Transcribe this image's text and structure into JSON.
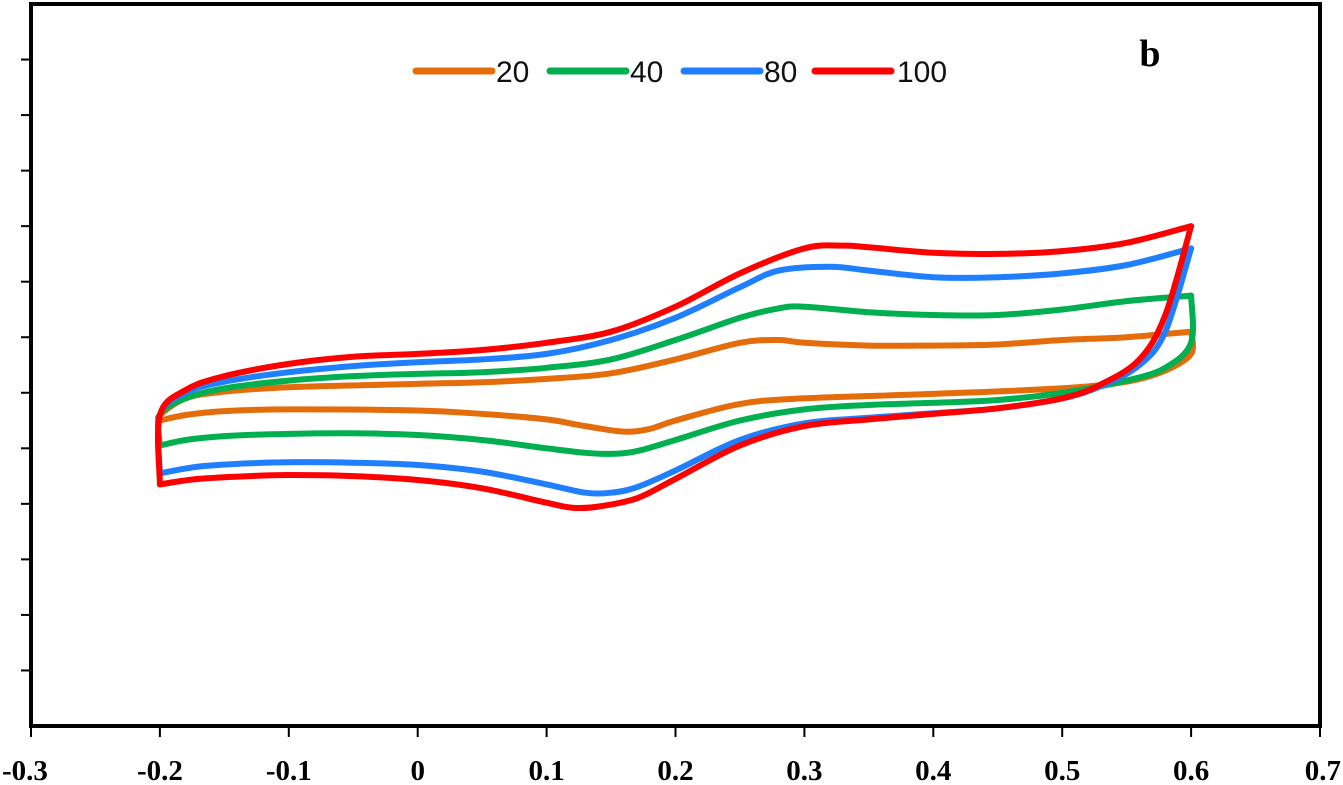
{
  "chart_data": {
    "type": "line",
    "title": "",
    "panel_label": "b",
    "xlabel": "",
    "ylabel": "",
    "xlim": [
      -0.3,
      0.7
    ],
    "ylim": [
      -8,
      5
    ],
    "x_ticks": [
      "-0.3",
      "-0.2",
      "-0.1",
      "0",
      "0.1",
      "0.2",
      "0.3",
      "0.4",
      "0.5",
      "0.6",
      "0.7"
    ],
    "x_tick_values": [
      -0.3,
      -0.2,
      -0.1,
      0,
      0.1,
      0.2,
      0.3,
      0.4,
      0.5,
      0.6,
      0.7
    ],
    "y_tick_values": [
      -7,
      -6,
      -5,
      -4,
      -3,
      -2,
      -1,
      0,
      1,
      2,
      3,
      4
    ],
    "y_ticks_labeled": false,
    "grid": false,
    "legend_position": "top-center",
    "series": [
      {
        "name": "20",
        "color": "#E46C0A",
        "forward": [
          [
            -0.2,
            -2.5
          ],
          [
            -0.18,
            -2.4
          ],
          [
            -0.15,
            -2.33
          ],
          [
            -0.1,
            -2.3
          ],
          [
            0.0,
            -2.32
          ],
          [
            0.05,
            -2.38
          ],
          [
            0.1,
            -2.48
          ],
          [
            0.13,
            -2.6
          ],
          [
            0.16,
            -2.7
          ],
          [
            0.18,
            -2.65
          ],
          [
            0.2,
            -2.5
          ],
          [
            0.25,
            -2.2
          ],
          [
            0.3,
            -2.1
          ],
          [
            0.4,
            -2.02
          ],
          [
            0.5,
            -1.92
          ],
          [
            0.55,
            -1.8
          ],
          [
            0.58,
            -1.6
          ],
          [
            0.6,
            -1.3
          ],
          [
            0.6,
            -0.9
          ]
        ],
        "reverse": [
          [
            0.6,
            -0.9
          ],
          [
            0.55,
            -1.0
          ],
          [
            0.5,
            -1.05
          ],
          [
            0.45,
            -1.13
          ],
          [
            0.4,
            -1.15
          ],
          [
            0.35,
            -1.15
          ],
          [
            0.3,
            -1.1
          ],
          [
            0.28,
            -1.05
          ],
          [
            0.25,
            -1.1
          ],
          [
            0.2,
            -1.4
          ],
          [
            0.15,
            -1.65
          ],
          [
            0.1,
            -1.75
          ],
          [
            0.05,
            -1.81
          ],
          [
            0.0,
            -1.84
          ],
          [
            -0.1,
            -1.9
          ],
          [
            -0.15,
            -1.98
          ],
          [
            -0.18,
            -2.1
          ],
          [
            -0.2,
            -2.4
          ],
          [
            -0.2,
            -2.5
          ]
        ]
      },
      {
        "name": "40",
        "color": "#00B050",
        "forward": [
          [
            -0.2,
            -2.95
          ],
          [
            -0.18,
            -2.85
          ],
          [
            -0.15,
            -2.78
          ],
          [
            -0.1,
            -2.74
          ],
          [
            -0.05,
            -2.73
          ],
          [
            0.0,
            -2.76
          ],
          [
            0.05,
            -2.85
          ],
          [
            0.1,
            -3.0
          ],
          [
            0.13,
            -3.08
          ],
          [
            0.15,
            -3.1
          ],
          [
            0.17,
            -3.05
          ],
          [
            0.2,
            -2.85
          ],
          [
            0.25,
            -2.5
          ],
          [
            0.3,
            -2.3
          ],
          [
            0.35,
            -2.22
          ],
          [
            0.4,
            -2.18
          ],
          [
            0.45,
            -2.13
          ],
          [
            0.5,
            -2.0
          ],
          [
            0.55,
            -1.78
          ],
          [
            0.58,
            -1.55
          ],
          [
            0.6,
            -1.1
          ],
          [
            0.6,
            -0.25
          ]
        ],
        "reverse": [
          [
            0.6,
            -0.25
          ],
          [
            0.55,
            -0.35
          ],
          [
            0.5,
            -0.5
          ],
          [
            0.45,
            -0.6
          ],
          [
            0.4,
            -0.6
          ],
          [
            0.35,
            -0.55
          ],
          [
            0.3,
            -0.45
          ],
          [
            0.28,
            -0.48
          ],
          [
            0.25,
            -0.65
          ],
          [
            0.2,
            -1.05
          ],
          [
            0.15,
            -1.4
          ],
          [
            0.1,
            -1.55
          ],
          [
            0.05,
            -1.63
          ],
          [
            0.0,
            -1.66
          ],
          [
            -0.05,
            -1.7
          ],
          [
            -0.1,
            -1.78
          ],
          [
            -0.15,
            -1.92
          ],
          [
            -0.18,
            -2.1
          ],
          [
            -0.2,
            -2.4
          ],
          [
            -0.2,
            -2.95
          ]
        ]
      },
      {
        "name": "80",
        "color": "#1F7FFF",
        "forward": [
          [
            -0.2,
            -3.45
          ],
          [
            -0.17,
            -3.33
          ],
          [
            -0.13,
            -3.27
          ],
          [
            -0.1,
            -3.25
          ],
          [
            -0.05,
            -3.26
          ],
          [
            0.0,
            -3.3
          ],
          [
            0.05,
            -3.42
          ],
          [
            0.1,
            -3.65
          ],
          [
            0.13,
            -3.8
          ],
          [
            0.15,
            -3.8
          ],
          [
            0.17,
            -3.7
          ],
          [
            0.2,
            -3.4
          ],
          [
            0.25,
            -2.85
          ],
          [
            0.3,
            -2.55
          ],
          [
            0.35,
            -2.45
          ],
          [
            0.4,
            -2.37
          ],
          [
            0.45,
            -2.28
          ],
          [
            0.5,
            -2.1
          ],
          [
            0.53,
            -1.88
          ],
          [
            0.56,
            -1.5
          ],
          [
            0.58,
            -0.9
          ],
          [
            0.6,
            0.6
          ]
        ],
        "reverse": [
          [
            0.6,
            0.6
          ],
          [
            0.55,
            0.3
          ],
          [
            0.5,
            0.15
          ],
          [
            0.45,
            0.08
          ],
          [
            0.4,
            0.08
          ],
          [
            0.35,
            0.2
          ],
          [
            0.32,
            0.27
          ],
          [
            0.28,
            0.2
          ],
          [
            0.25,
            -0.1
          ],
          [
            0.2,
            -0.65
          ],
          [
            0.15,
            -1.05
          ],
          [
            0.1,
            -1.3
          ],
          [
            0.05,
            -1.4
          ],
          [
            0.0,
            -1.45
          ],
          [
            -0.05,
            -1.52
          ],
          [
            -0.1,
            -1.63
          ],
          [
            -0.15,
            -1.8
          ],
          [
            -0.18,
            -2.0
          ],
          [
            -0.2,
            -2.4
          ],
          [
            -0.2,
            -3.45
          ]
        ]
      },
      {
        "name": "100",
        "color": "#FF0000",
        "forward": [
          [
            -0.2,
            -3.65
          ],
          [
            -0.17,
            -3.55
          ],
          [
            -0.13,
            -3.5
          ],
          [
            -0.1,
            -3.48
          ],
          [
            -0.05,
            -3.5
          ],
          [
            0.0,
            -3.57
          ],
          [
            0.05,
            -3.72
          ],
          [
            0.1,
            -3.98
          ],
          [
            0.12,
            -4.07
          ],
          [
            0.14,
            -4.05
          ],
          [
            0.17,
            -3.9
          ],
          [
            0.2,
            -3.55
          ],
          [
            0.25,
            -2.95
          ],
          [
            0.3,
            -2.6
          ],
          [
            0.35,
            -2.48
          ],
          [
            0.4,
            -2.38
          ],
          [
            0.45,
            -2.28
          ],
          [
            0.5,
            -2.1
          ],
          [
            0.53,
            -1.85
          ],
          [
            0.56,
            -1.4
          ],
          [
            0.58,
            -0.6
          ],
          [
            0.6,
            1.0
          ]
        ],
        "reverse": [
          [
            0.6,
            1.0
          ],
          [
            0.55,
            0.7
          ],
          [
            0.5,
            0.55
          ],
          [
            0.45,
            0.5
          ],
          [
            0.4,
            0.52
          ],
          [
            0.35,
            0.62
          ],
          [
            0.33,
            0.65
          ],
          [
            0.3,
            0.6
          ],
          [
            0.25,
            0.15
          ],
          [
            0.2,
            -0.45
          ],
          [
            0.15,
            -0.9
          ],
          [
            0.1,
            -1.1
          ],
          [
            0.05,
            -1.23
          ],
          [
            0.0,
            -1.3
          ],
          [
            -0.05,
            -1.35
          ],
          [
            -0.1,
            -1.48
          ],
          [
            -0.15,
            -1.7
          ],
          [
            -0.18,
            -1.95
          ],
          [
            -0.2,
            -2.4
          ],
          [
            -0.2,
            -3.65
          ]
        ]
      }
    ]
  }
}
